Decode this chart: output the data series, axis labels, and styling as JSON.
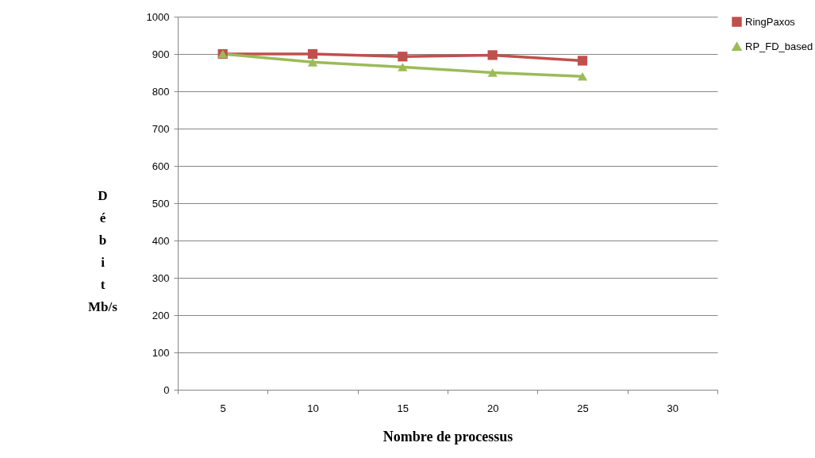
{
  "chart_data": {
    "type": "line",
    "xlabel": "Nombre de processus",
    "ylabel": "Débit Mb/s",
    "categories": [
      "5",
      "10",
      "15",
      "20",
      "25",
      "30"
    ],
    "series": [
      {
        "name": "RingPaxos",
        "color": "#c0504d",
        "marker": "square",
        "values": [
          900,
          900,
          893,
          897,
          882,
          null
        ]
      },
      {
        "name": "RP_FD_based",
        "color": "#9bbb59",
        "marker": "triangle",
        "values": [
          900,
          878,
          865,
          850,
          840,
          null
        ]
      }
    ],
    "ylim": [
      0,
      1000
    ],
    "yticks": [
      0,
      100,
      200,
      300,
      400,
      500,
      600,
      700,
      800,
      900,
      1000
    ],
    "grid": "y",
    "legend": "right",
    "line_style": "solid"
  }
}
